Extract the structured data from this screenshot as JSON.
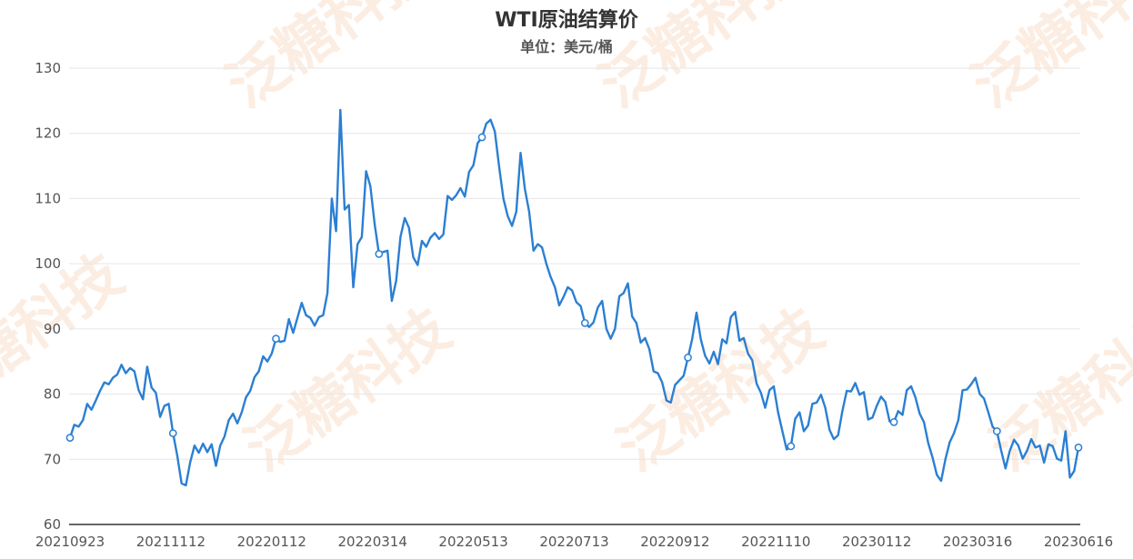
{
  "chart_data": {
    "type": "line",
    "title": "WTI原油结算价",
    "subtitle": "单位：美元/桶",
    "xlabel": "",
    "ylabel": "",
    "ylim": [
      60,
      130
    ],
    "yticks": [
      "60",
      "70",
      "80",
      "90",
      "100",
      "110",
      "120",
      "130"
    ],
    "xticks": [
      "20210923",
      "20211112",
      "20220112",
      "20220314",
      "20220513",
      "20220713",
      "20220912",
      "20221110",
      "20230112",
      "20230316",
      "20230616"
    ],
    "grid": true,
    "line_color": "#2b7fd3",
    "watermark": "泛糖科技",
    "series": [
      {
        "values": [
          73.3,
          75.3,
          75.0,
          76.0,
          78.5,
          77.6,
          79.0,
          80.5,
          81.8,
          81.5,
          82.5,
          83.0,
          84.5,
          83.2,
          84.0,
          83.5,
          80.6,
          79.2,
          84.2,
          81.0,
          80.2,
          76.5,
          78.2,
          78.5,
          74.0,
          70.5,
          66.3,
          66.0,
          69.5,
          72.1,
          71.0,
          72.4,
          71.1,
          72.3,
          69.0,
          72.1,
          73.5,
          76.0,
          77.0,
          75.5,
          77.2,
          79.5,
          80.5,
          82.6,
          83.5,
          85.8,
          85.0,
          86.2,
          88.5,
          88.0,
          88.2,
          91.5,
          89.4,
          91.7,
          94.0,
          92.1,
          91.7,
          90.5,
          91.8,
          92.1,
          95.5,
          110.0,
          105.0,
          123.6,
          108.3,
          109.0,
          96.4,
          103.0,
          104.1,
          114.2,
          111.9,
          106.0,
          101.5,
          101.8,
          102.0,
          94.3,
          97.4,
          104.1,
          107.0,
          105.5,
          101.0,
          99.8,
          103.5,
          102.6,
          104.0,
          104.7,
          103.8,
          104.5,
          110.4,
          109.8,
          110.5,
          111.6,
          110.3,
          114.1,
          115.1,
          118.5,
          119.4,
          121.5,
          122.1,
          120.3,
          114.9,
          110.0,
          107.3,
          105.8,
          108.0,
          117.0,
          111.5,
          108.0,
          102.0,
          103.0,
          102.5,
          100.0,
          98.0,
          96.4,
          93.6,
          94.9,
          96.4,
          95.9,
          94.1,
          93.5,
          90.9,
          90.3,
          91.0,
          93.3,
          94.3,
          90.0,
          88.5,
          90.0,
          95.0,
          95.5,
          97.0,
          91.9,
          90.9,
          87.9,
          88.6,
          86.9,
          83.5,
          83.2,
          81.8,
          79.0,
          78.7,
          81.4,
          82.1,
          82.8,
          85.6,
          88.5,
          92.5,
          88.4,
          85.9,
          84.7,
          86.5,
          84.6,
          88.4,
          87.8,
          91.8,
          92.6,
          88.2,
          88.6,
          86.2,
          85.2,
          81.6,
          80.2,
          77.9,
          80.6,
          81.2,
          77.2,
          74.3,
          71.5,
          72.0,
          76.2,
          77.2,
          74.3,
          75.2,
          78.5,
          78.7,
          79.9,
          77.9,
          74.5,
          73.1,
          73.7,
          77.4,
          80.5,
          80.4,
          81.7,
          79.9,
          80.3,
          76.1,
          76.4,
          78.2,
          79.6,
          78.8,
          75.8,
          75.7,
          77.4,
          76.8,
          80.6,
          81.2,
          79.5,
          77.0,
          75.7,
          72.5,
          70.3,
          67.6,
          66.7,
          70.0,
          72.6,
          74.0,
          76.0,
          80.6,
          80.7,
          81.5,
          82.5,
          80.0,
          79.3,
          77.2,
          75.0,
          74.3,
          71.3,
          68.6,
          71.3,
          73.0,
          72.1,
          70.1,
          71.3,
          73.1,
          71.8,
          72.1,
          69.5,
          72.3,
          72.0,
          70.1,
          69.8,
          74.3,
          67.2,
          68.2,
          71.8
        ]
      }
    ]
  }
}
